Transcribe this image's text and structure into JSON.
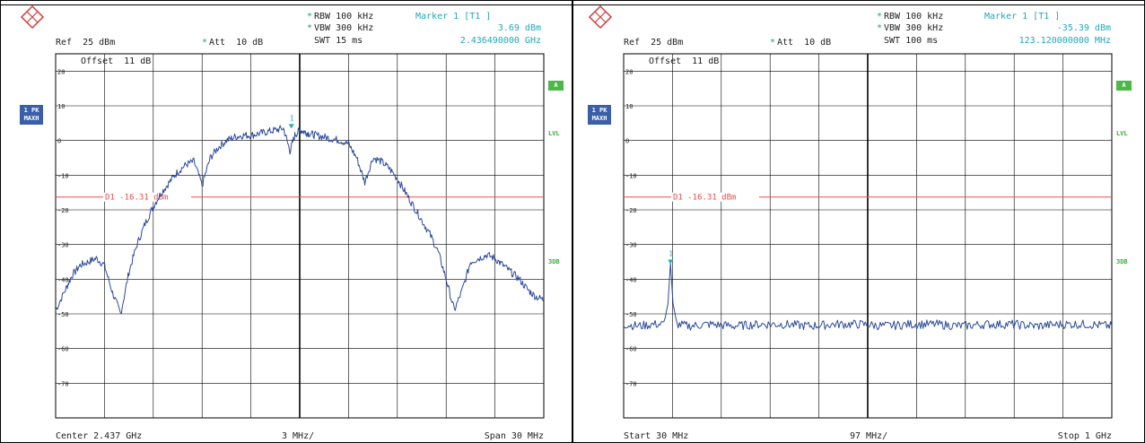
{
  "colors": {
    "trace": "#2c4a9a",
    "grid": "#000000",
    "display_line": "#ee4b4b",
    "marker": "#22a8b8",
    "badge": "#3a5ea8",
    "green": "#4cb848"
  },
  "icons": {
    "logo": "rohde-schwarz-logo"
  },
  "chart_data": [
    {
      "type": "line",
      "header": {
        "rbw": "RBW 100 kHz",
        "vbw": "VBW 300 kHz",
        "swt": "SWT 15 ms",
        "ref": "Ref  25 dBm",
        "att": "Att  10 dB",
        "marker_title": "Marker 1 [T1 ]",
        "marker_level": "3.69 dBm",
        "marker_freq": "2.436490000 GHz",
        "offset": "Offset  11 dB"
      },
      "trace_badge": [
        "1 PK",
        "MAXH"
      ],
      "side_labels": {
        "a": "A",
        "lvl": "LVL",
        "three_db": "3DB"
      },
      "footer": {
        "left": "Center 2.437 GHz",
        "mid": "3 MHz/",
        "right": "Span 30 MHz"
      },
      "ylim": [
        -80,
        25
      ],
      "yticks": [
        20,
        10,
        0,
        -10,
        -20,
        -30,
        -40,
        -50,
        -60,
        -70
      ],
      "ytick_labels": [
        "20",
        "10",
        "0",
        "-10",
        "-20",
        "-30",
        "-40",
        "-50",
        "-60",
        "-70"
      ],
      "xlim": [
        2422,
        2452
      ],
      "x_divisions": 10,
      "display_line": {
        "label": "D1 -16.31 dBm",
        "value": -16.31
      },
      "marker": {
        "label": "1",
        "x": 2436.49,
        "y": 3.69
      },
      "x": [
        2422,
        2422.6,
        2423,
        2423.5,
        2424,
        2424.5,
        2425,
        2425.5,
        2426,
        2426.5,
        2427,
        2427.5,
        2428,
        2428.5,
        2429,
        2429.5,
        2430,
        2430.5,
        2431,
        2431.5,
        2432,
        2432.5,
        2433,
        2433.5,
        2434,
        2434.5,
        2435,
        2435.5,
        2436,
        2436.4,
        2436.7,
        2437,
        2437.3,
        2437.6,
        2438,
        2438.5,
        2439,
        2439.5,
        2440,
        2440.5,
        2441,
        2441.5,
        2442,
        2442.5,
        2443,
        2443.5,
        2444,
        2444.5,
        2445,
        2445.5,
        2446,
        2446.5,
        2447,
        2447.5,
        2448,
        2448.5,
        2449,
        2449.5,
        2450,
        2450.5,
        2451,
        2451.5,
        2452
      ],
      "values": [
        -49,
        -43,
        -39,
        -36,
        -35,
        -34,
        -36,
        -44,
        -50,
        -38,
        -30,
        -24,
        -19,
        -15,
        -12,
        -9,
        -7,
        -6,
        -13,
        -5,
        -2,
        0,
        1,
        1.5,
        1.5,
        2,
        2.5,
        3,
        3.5,
        -3,
        1.5,
        3,
        2.5,
        2,
        1.5,
        1,
        0.5,
        0,
        -1,
        -5,
        -12,
        -5,
        -6,
        -8,
        -11,
        -15,
        -19,
        -23,
        -27,
        -32,
        -40,
        -49,
        -43,
        -35,
        -34,
        -33,
        -34,
        -36,
        -38,
        -40,
        -43,
        -45,
        -46
      ]
    },
    {
      "type": "line",
      "header": {
        "rbw": "RBW 100 kHz",
        "vbw": "VBW 300 kHz",
        "swt": "SWT 100 ms",
        "ref": "Ref  25 dBm",
        "att": "Att  10 dB",
        "marker_title": "Marker 1 [T1 ]",
        "marker_level": "-35.39 dBm",
        "marker_freq": "123.120000000 MHz",
        "offset": "Offset  11 dB"
      },
      "trace_badge": [
        "1 PK",
        "MAXH"
      ],
      "side_labels": {
        "a": "A",
        "lvl": "LVL",
        "three_db": "3DB"
      },
      "footer": {
        "left": "Start 30 MHz",
        "mid": "97 MHz/",
        "right": "Stop 1 GHz"
      },
      "ylim": [
        -80,
        25
      ],
      "yticks": [
        20,
        10,
        0,
        -10,
        -20,
        -30,
        -40,
        -50,
        -60,
        -70
      ],
      "ytick_labels": [
        "20",
        "10",
        "0",
        "-10",
        "-20",
        "-30",
        "-40",
        "-50",
        "-60",
        "-70"
      ],
      "xlim": [
        30,
        1000
      ],
      "x_divisions": 10,
      "display_line": {
        "label": "D1 -16.31 dBm",
        "value": -16.31
      },
      "marker": {
        "label": "1",
        "x": 123.12,
        "y": -35.39
      },
      "x": [
        30,
        60,
        90,
        110,
        118,
        123,
        128,
        136,
        160,
        200,
        250,
        300,
        350,
        400,
        450,
        500,
        550,
        600,
        650,
        700,
        750,
        800,
        850,
        900,
        950,
        1000
      ],
      "values": [
        -53,
        -53.5,
        -53,
        -53,
        -47,
        -35.4,
        -47,
        -53,
        -53.5,
        -53,
        -53.5,
        -53,
        -53,
        -53.5,
        -53,
        -53,
        -53.5,
        -53,
        -53,
        -53.5,
        -53,
        -53,
        -53.5,
        -53,
        -53,
        -53.5
      ],
      "noise_floor": -53.3
    }
  ]
}
